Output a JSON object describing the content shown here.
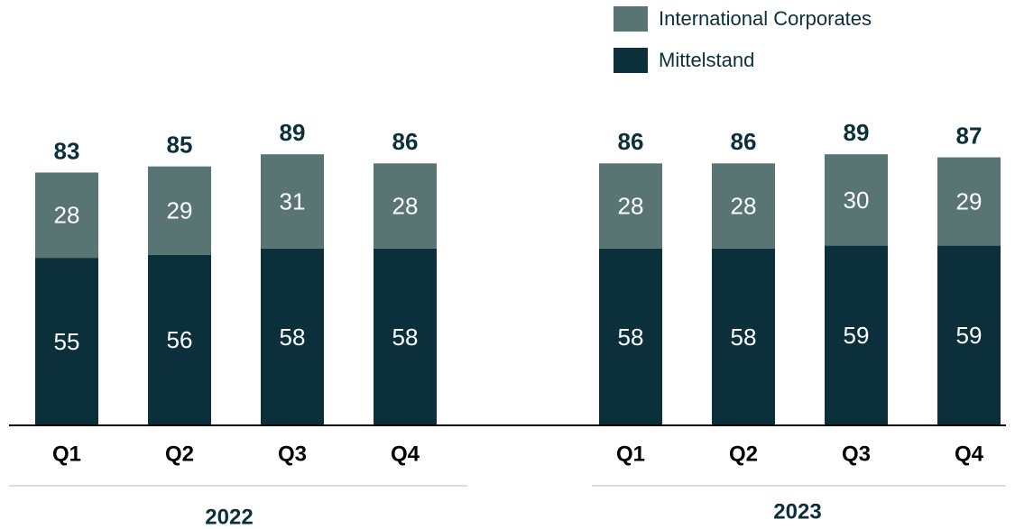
{
  "chart_data": {
    "type": "stacked_bar",
    "categories": [
      "Q1",
      "Q2",
      "Q3",
      "Q4",
      "Q1",
      "Q2",
      "Q3",
      "Q4"
    ],
    "groups": [
      "2022",
      "2023"
    ],
    "series": [
      {
        "name": "Mittelstand",
        "color": "#0b2f3b",
        "values": [
          55,
          56,
          58,
          58,
          58,
          58,
          59,
          59
        ]
      },
      {
        "name": "International Corporates",
        "color": "#587574",
        "values": [
          28,
          29,
          31,
          28,
          28,
          28,
          30,
          29
        ]
      }
    ],
    "totals": [
      83,
      85,
      89,
      86,
      86,
      86,
      89,
      87
    ],
    "ylim": [
      0,
      100
    ]
  }
}
